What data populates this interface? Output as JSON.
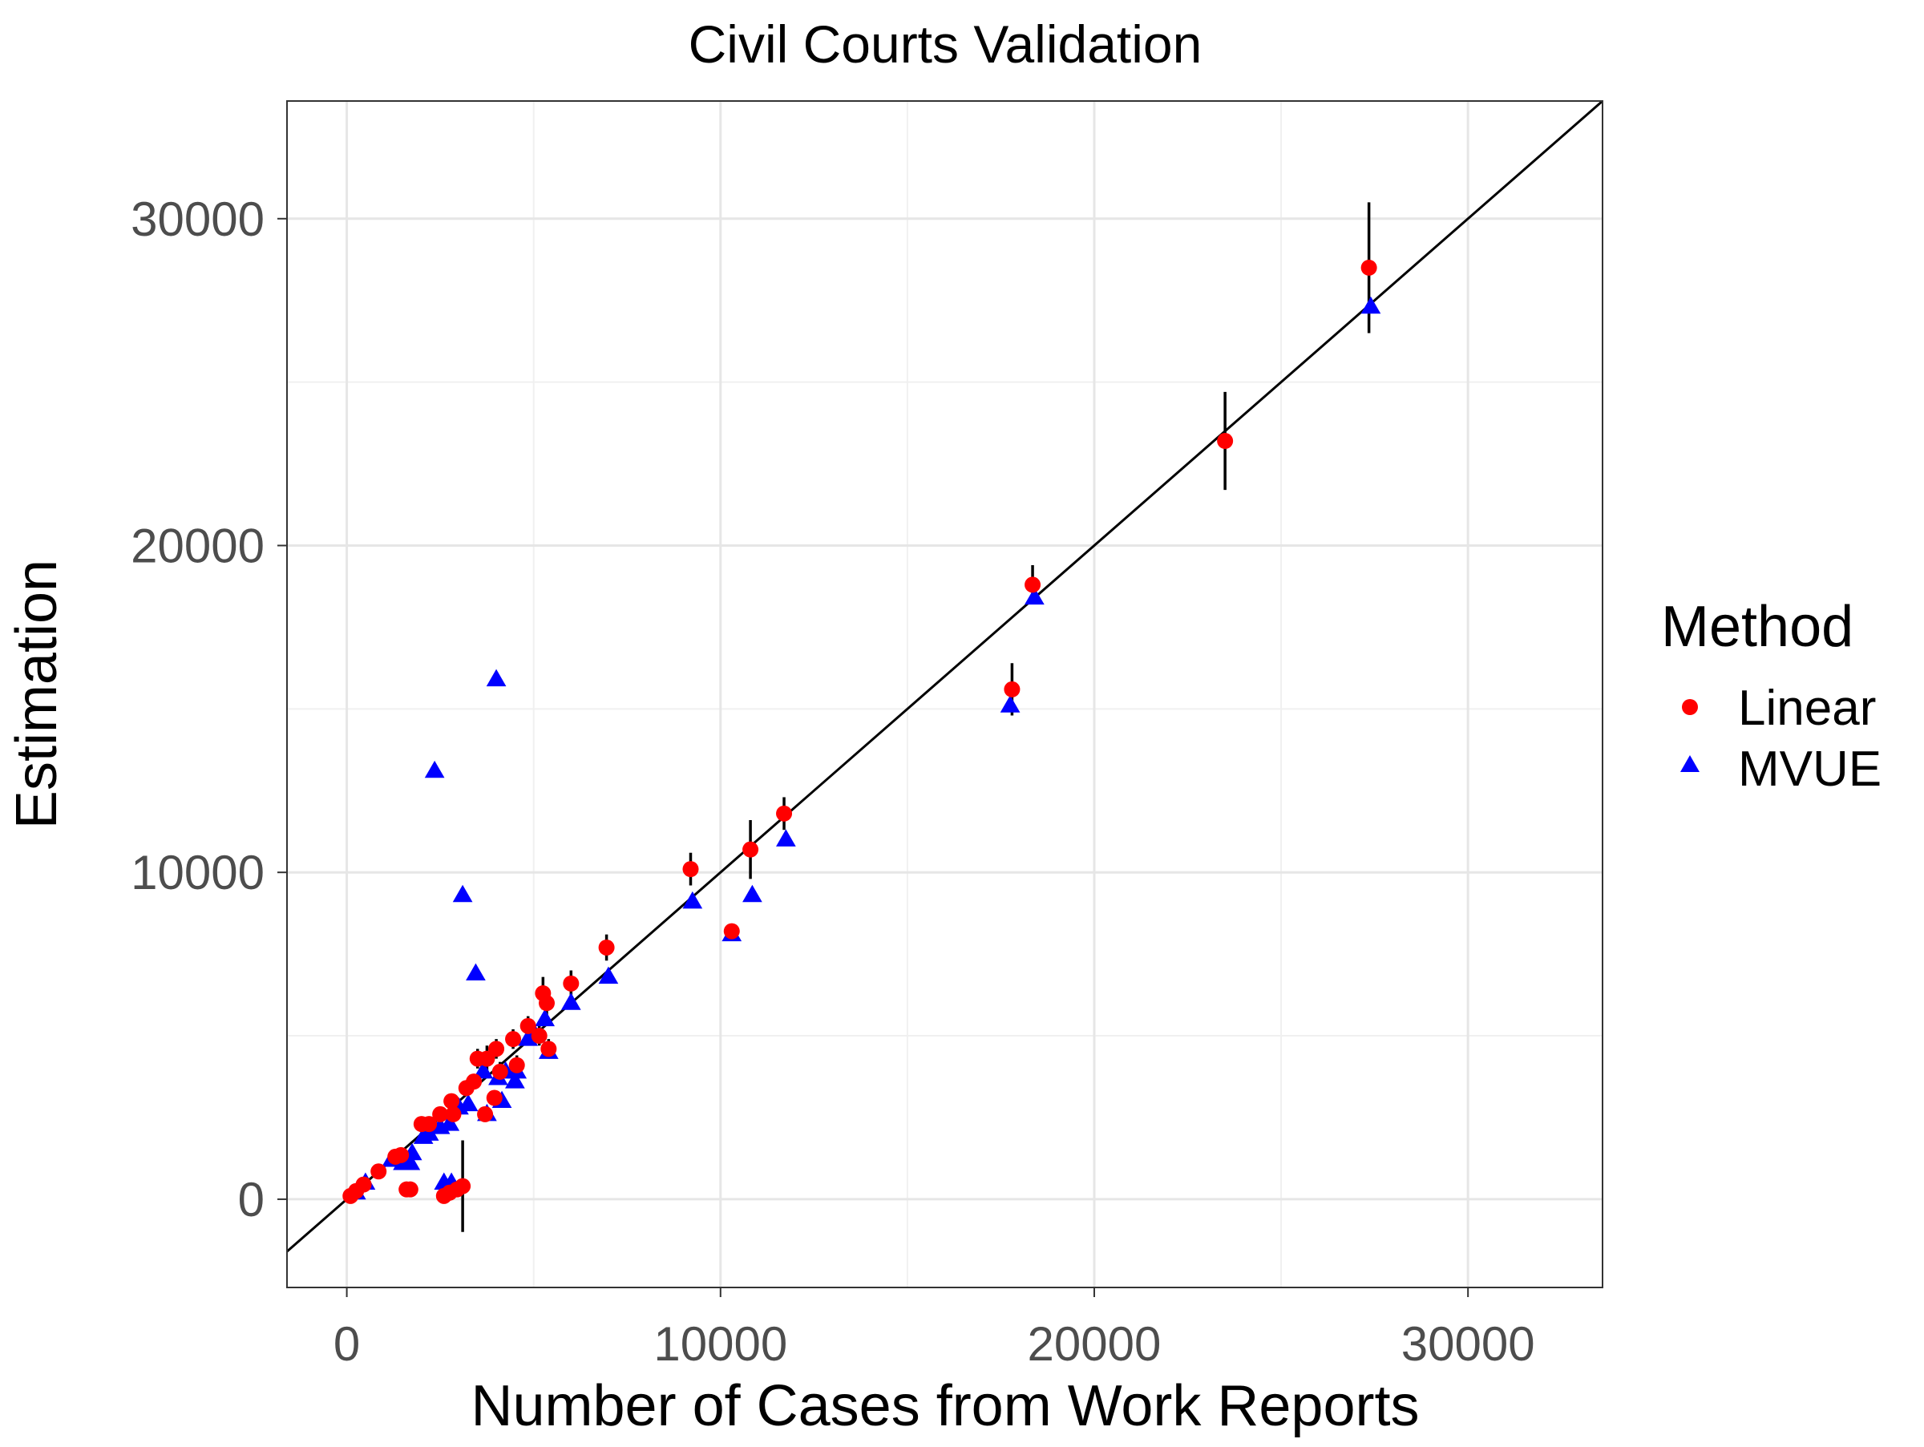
{
  "chart_data": {
    "type": "scatter",
    "title": "Civil Courts Validation",
    "xlabel": "Number of Cases from Work Reports",
    "ylabel": "Estimation",
    "xlim": [
      -1600,
      33600
    ],
    "ylim": [
      -2700,
      33600
    ],
    "x_ticks": [
      0,
      10000,
      20000,
      30000
    ],
    "x_tick_labels": [
      "0",
      "10000",
      "20000",
      "30000"
    ],
    "y_ticks": [
      0,
      10000,
      20000,
      30000
    ],
    "y_tick_labels": [
      "0",
      "10000",
      "20000",
      "30000"
    ],
    "grid": true,
    "reference_line": "y = x",
    "legend": {
      "title": "Method",
      "position": "right",
      "entries": [
        {
          "label": "Linear",
          "color": "#ff0000",
          "shape": "circle"
        },
        {
          "label": "MVUE",
          "color": "#0000ff",
          "shape": "triangle"
        }
      ]
    },
    "series": [
      {
        "name": "Linear",
        "color": "#ff0000",
        "shape": "circle",
        "points": [
          {
            "x": 100,
            "y": 100,
            "lo": 50,
            "hi": 150
          },
          {
            "x": 250,
            "y": 250,
            "lo": 200,
            "hi": 300
          },
          {
            "x": 450,
            "y": 450,
            "lo": 400,
            "hi": 500
          },
          {
            "x": 850,
            "y": 850,
            "lo": 800,
            "hi": 900
          },
          {
            "x": 1300,
            "y": 1300,
            "lo": 1100,
            "hi": 1500
          },
          {
            "x": 1450,
            "y": 1350,
            "lo": 1200,
            "hi": 1500
          },
          {
            "x": 1600,
            "y": 300,
            "lo": 100,
            "hi": 500
          },
          {
            "x": 1700,
            "y": 300,
            "lo": 200,
            "hi": 400
          },
          {
            "x": 2000,
            "y": 2300,
            "lo": 2100,
            "hi": 2500
          },
          {
            "x": 2200,
            "y": 2300,
            "lo": 2100,
            "hi": 2500
          },
          {
            "x": 2500,
            "y": 2600,
            "lo": 2400,
            "hi": 2800
          },
          {
            "x": 2600,
            "y": 100,
            "lo": 0,
            "hi": 200
          },
          {
            "x": 2750,
            "y": 200,
            "lo": 100,
            "hi": 300
          },
          {
            "x": 2800,
            "y": 3000,
            "lo": 2800,
            "hi": 3200
          },
          {
            "x": 2850,
            "y": 2600,
            "lo": 2400,
            "hi": 2800
          },
          {
            "x": 2950,
            "y": 300,
            "lo": 200,
            "hi": 400
          },
          {
            "x": 3100,
            "y": 400,
            "lo": -1000,
            "hi": 1800
          },
          {
            "x": 3200,
            "y": 3400,
            "lo": 3200,
            "hi": 3600
          },
          {
            "x": 3400,
            "y": 3600,
            "lo": 3400,
            "hi": 3800
          },
          {
            "x": 3500,
            "y": 4300,
            "lo": 4000,
            "hi": 4600
          },
          {
            "x": 3700,
            "y": 2600,
            "lo": 2400,
            "hi": 2800
          },
          {
            "x": 3750,
            "y": 4300,
            "lo": 3900,
            "hi": 4700
          },
          {
            "x": 3950,
            "y": 3100,
            "lo": 2900,
            "hi": 3300
          },
          {
            "x": 4000,
            "y": 4600,
            "lo": 4300,
            "hi": 4900
          },
          {
            "x": 4100,
            "y": 3900,
            "lo": 3600,
            "hi": 4200
          },
          {
            "x": 4450,
            "y": 4900,
            "lo": 4600,
            "hi": 5200
          },
          {
            "x": 4550,
            "y": 4100,
            "lo": 3800,
            "hi": 4400
          },
          {
            "x": 4850,
            "y": 5300,
            "lo": 5000,
            "hi": 5600
          },
          {
            "x": 5150,
            "y": 5000,
            "lo": 4700,
            "hi": 5300
          },
          {
            "x": 5250,
            "y": 6300,
            "lo": 5800,
            "hi": 6800
          },
          {
            "x": 5350,
            "y": 6000,
            "lo": 5600,
            "hi": 6400
          },
          {
            "x": 5400,
            "y": 4600,
            "lo": 4300,
            "hi": 4900
          },
          {
            "x": 6000,
            "y": 6600,
            "lo": 6200,
            "hi": 7000
          },
          {
            "x": 6950,
            "y": 7700,
            "lo": 7300,
            "hi": 8100
          },
          {
            "x": 9200,
            "y": 10100,
            "lo": 9600,
            "hi": 10600
          },
          {
            "x": 10300,
            "y": 8200,
            "lo": 8000,
            "hi": 8400
          },
          {
            "x": 10800,
            "y": 10700,
            "lo": 9800,
            "hi": 11600
          },
          {
            "x": 11700,
            "y": 11800,
            "lo": 11300,
            "hi": 12300
          },
          {
            "x": 17800,
            "y": 15600,
            "lo": 14800,
            "hi": 16400
          },
          {
            "x": 18350,
            "y": 18800,
            "lo": 18200,
            "hi": 19400
          },
          {
            "x": 23500,
            "y": 23200,
            "lo": 21700,
            "hi": 24700
          },
          {
            "x": 27350,
            "y": 28500,
            "lo": 26500,
            "hi": 30500
          }
        ]
      },
      {
        "name": "MVUE",
        "color": "#0000ff",
        "shape": "triangle",
        "points": [
          {
            "x": 250,
            "y": 200
          },
          {
            "x": 500,
            "y": 500
          },
          {
            "x": 1200,
            "y": 1200
          },
          {
            "x": 1500,
            "y": 1100
          },
          {
            "x": 1700,
            "y": 1100
          },
          {
            "x": 1750,
            "y": 1400
          },
          {
            "x": 2050,
            "y": 1900
          },
          {
            "x": 2200,
            "y": 2000
          },
          {
            "x": 2350,
            "y": 13100
          },
          {
            "x": 2500,
            "y": 2200
          },
          {
            "x": 2600,
            "y": 500
          },
          {
            "x": 2750,
            "y": 2300
          },
          {
            "x": 2800,
            "y": 500
          },
          {
            "x": 3000,
            "y": 2800
          },
          {
            "x": 3100,
            "y": 9300
          },
          {
            "x": 3250,
            "y": 2900
          },
          {
            "x": 3450,
            "y": 6900
          },
          {
            "x": 3650,
            "y": 3900
          },
          {
            "x": 3750,
            "y": 2600
          },
          {
            "x": 4000,
            "y": 15900
          },
          {
            "x": 4050,
            "y": 3700
          },
          {
            "x": 4150,
            "y": 3000
          },
          {
            "x": 4250,
            "y": 3900
          },
          {
            "x": 4500,
            "y": 3600
          },
          {
            "x": 4550,
            "y": 3900
          },
          {
            "x": 4850,
            "y": 4900
          },
          {
            "x": 5050,
            "y": 5000
          },
          {
            "x": 5300,
            "y": 5500
          },
          {
            "x": 5400,
            "y": 4500
          },
          {
            "x": 6000,
            "y": 6000
          },
          {
            "x": 7000,
            "y": 6800
          },
          {
            "x": 9250,
            "y": 9100
          },
          {
            "x": 10300,
            "y": 8100
          },
          {
            "x": 10850,
            "y": 9300
          },
          {
            "x": 11750,
            "y": 11000
          },
          {
            "x": 17750,
            "y": 15100
          },
          {
            "x": 18400,
            "y": 18400
          },
          {
            "x": 27400,
            "y": 27300
          }
        ]
      }
    ]
  }
}
